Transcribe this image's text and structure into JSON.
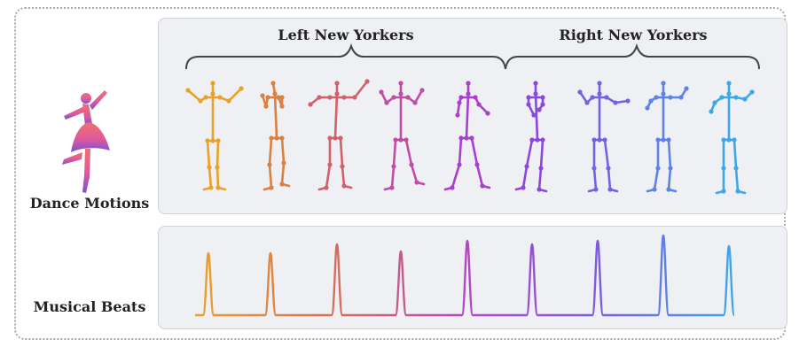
{
  "labels": {
    "dance_motions": "Dance Motions",
    "musical_beats": "Musical Beats"
  },
  "groups": {
    "left": "Left New Yorkers",
    "right": "Right New Yorkers"
  },
  "colors": [
    "#e8a22a",
    "#d98043",
    "#d1606a",
    "#c14ca6",
    "#a93fd0",
    "#8a48e0",
    "#7462e0",
    "#5f82e5",
    "#3fa7e6"
  ],
  "icons": {
    "dancer": "ballerina-icon",
    "waveform": "audio-waveform-icon"
  }
}
